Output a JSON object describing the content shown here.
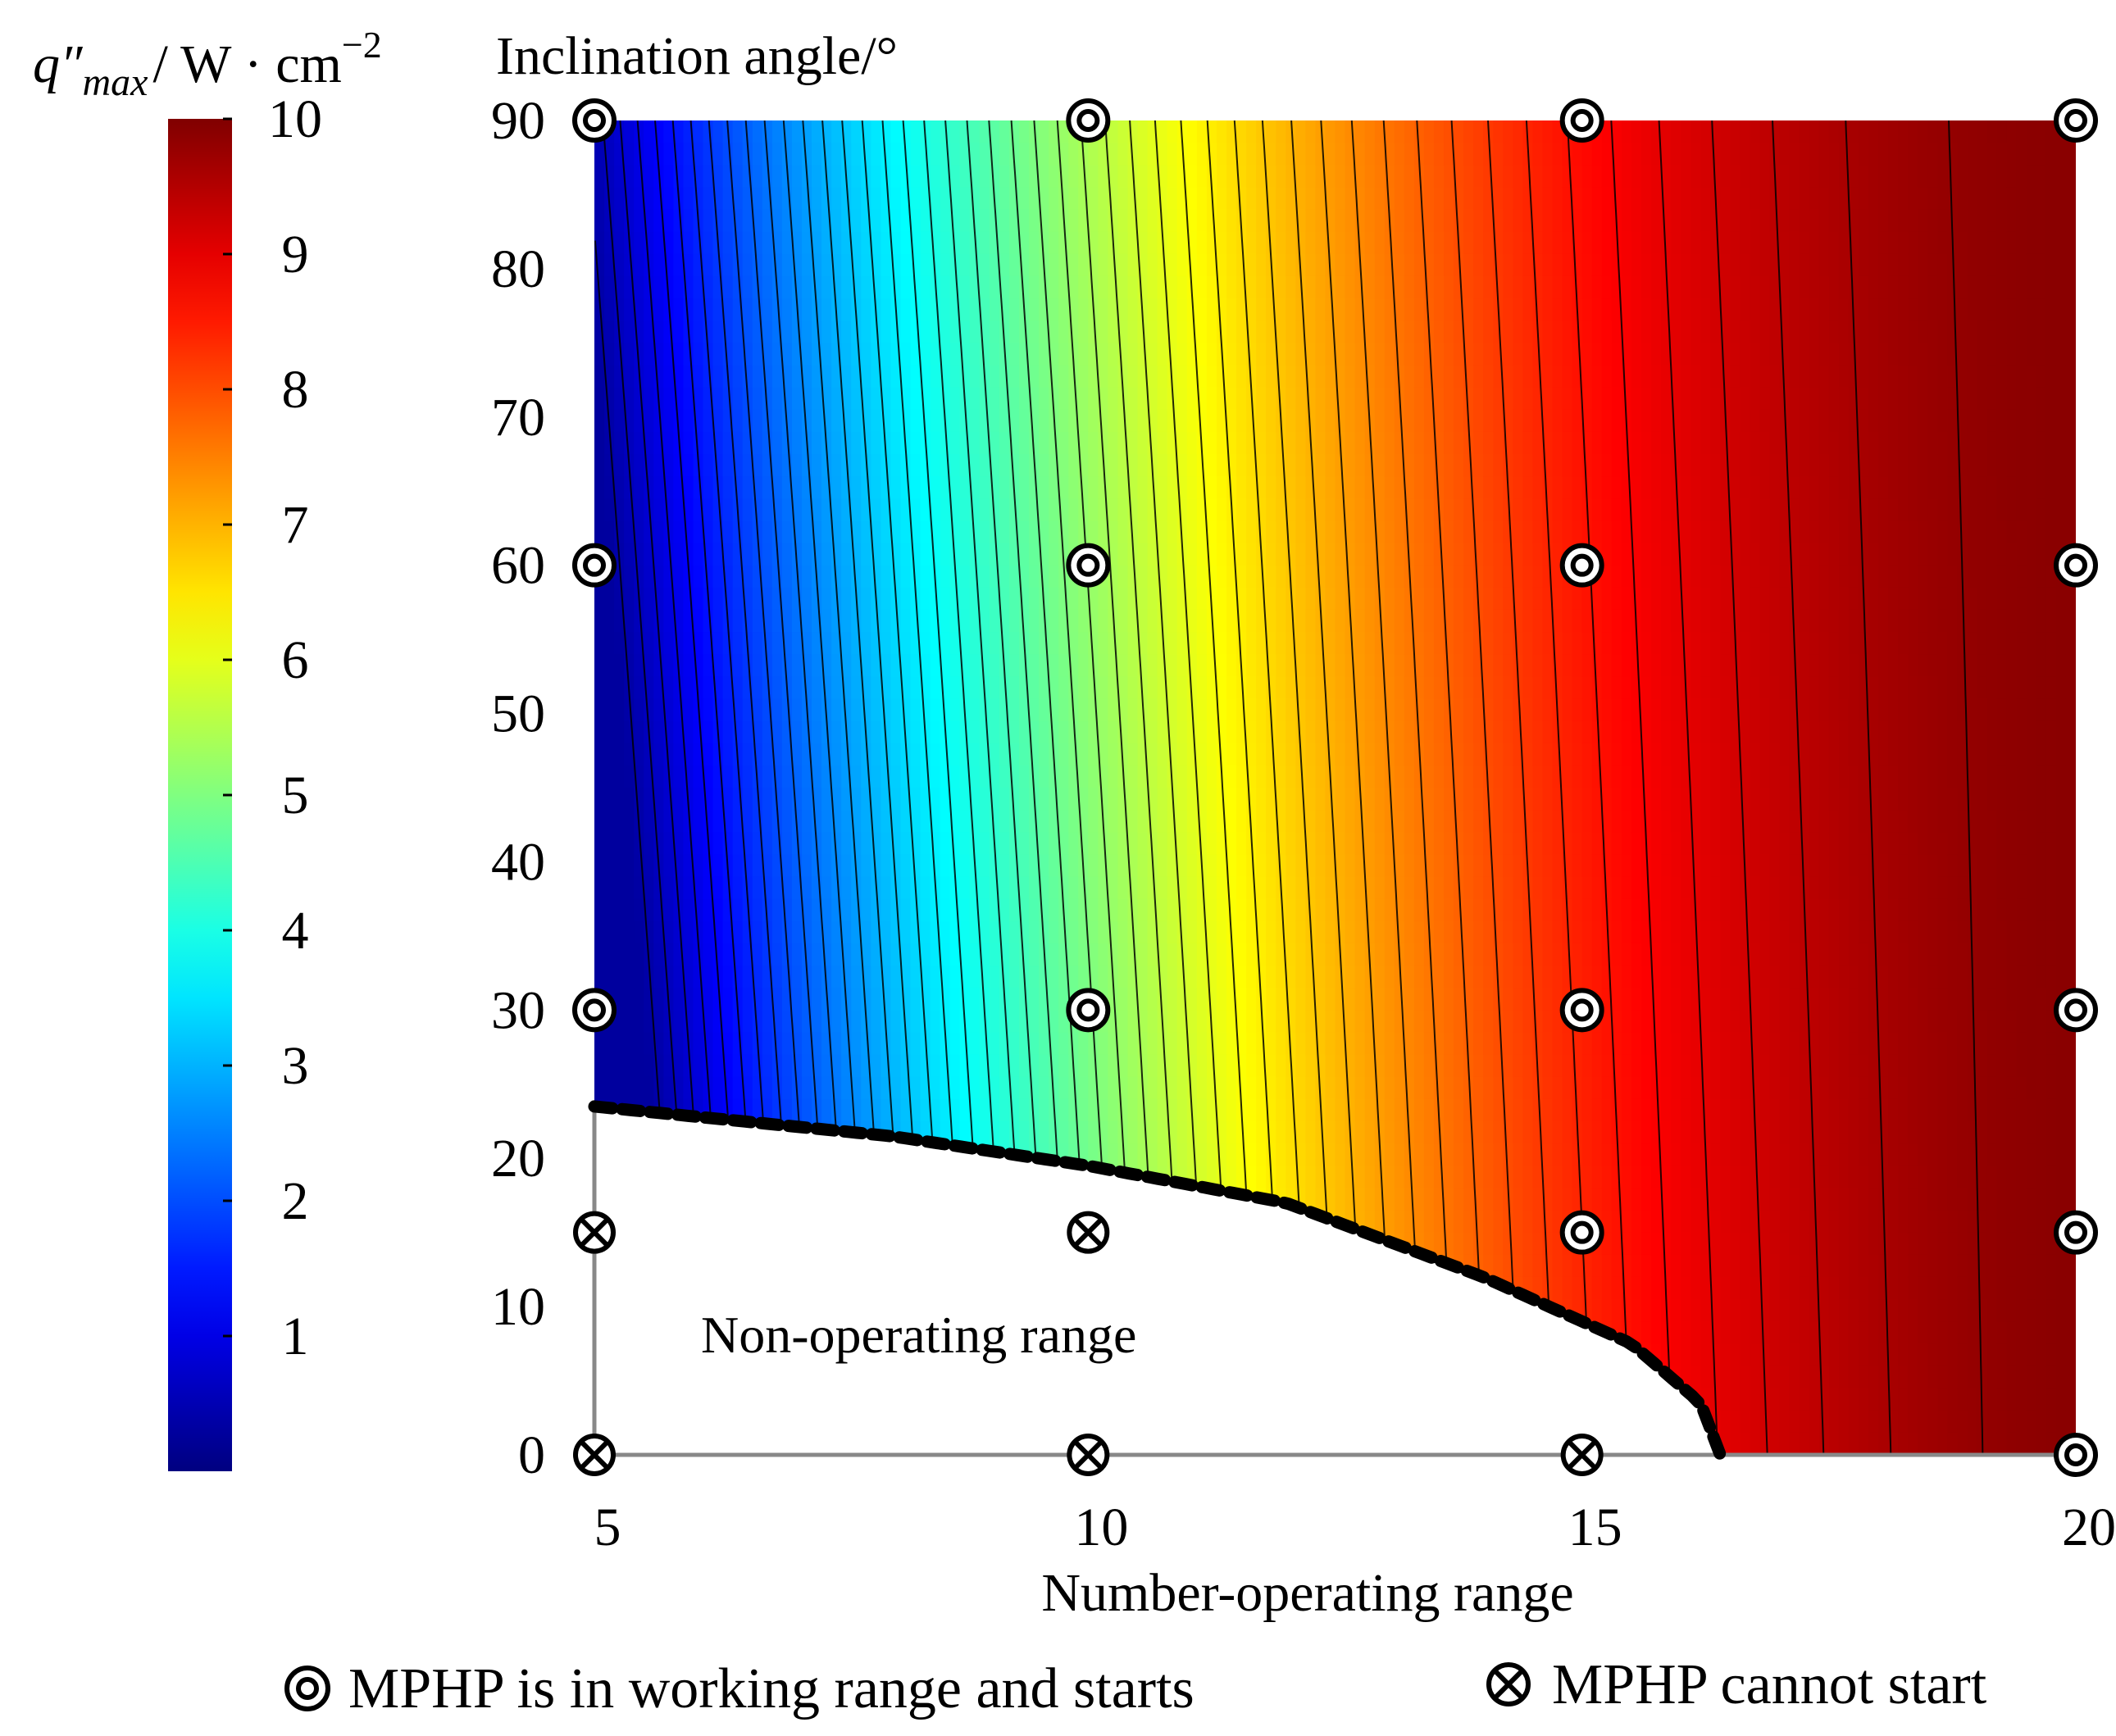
{
  "chart_data": {
    "type": "contour",
    "title": "Inclination angle/°",
    "xlabel": "Number-operating range",
    "ylabel": "Inclination angle/°",
    "xlim": [
      5,
      20
    ],
    "ylim": [
      0,
      90
    ],
    "xticks": [
      5,
      10,
      15,
      20
    ],
    "yticks": [
      0,
      10,
      20,
      30,
      40,
      50,
      60,
      70,
      80,
      90
    ],
    "colorbar": {
      "label_symbol": "q″",
      "label_subscript": "max",
      "label_units": "/ W · cm",
      "label_exponent": "−2",
      "range": [
        0,
        10
      ],
      "ticks": [
        1,
        2,
        3,
        4,
        5,
        6,
        7,
        8,
        9,
        10
      ],
      "colormap": "jet"
    },
    "field_description": "q''max increases with number of turns and with inclination angle; values range ~0.5 to 10 W/cm2",
    "contour_levels": 50,
    "boundary": {
      "name": "Non-operating range",
      "style": "dashed-black",
      "points": [
        [
          5,
          23.5
        ],
        [
          8,
          21.5
        ],
        [
          10,
          19.5
        ],
        [
          12,
          17
        ],
        [
          14,
          12
        ],
        [
          15.5,
          7.5
        ],
        [
          16.2,
          3.5
        ],
        [
          16.4,
          0
        ]
      ]
    },
    "region_label": "Non-operating range",
    "markers": {
      "starts": {
        "label": "MPHP is in working range and starts",
        "points": [
          [
            5,
            90
          ],
          [
            10,
            90
          ],
          [
            15,
            90
          ],
          [
            20,
            90
          ],
          [
            5,
            60
          ],
          [
            10,
            60
          ],
          [
            15,
            60
          ],
          [
            20,
            60
          ],
          [
            5,
            30
          ],
          [
            10,
            30
          ],
          [
            15,
            30
          ],
          [
            20,
            30
          ],
          [
            15,
            15
          ],
          [
            20,
            15
          ],
          [
            20,
            0
          ]
        ]
      },
      "cannot_start": {
        "label": "MPHP cannot start",
        "points": [
          [
            5,
            15
          ],
          [
            10,
            15
          ],
          [
            5,
            0
          ],
          [
            10,
            0
          ],
          [
            15,
            0
          ]
        ]
      }
    },
    "colors": {
      "jet": [
        "#00008f",
        "#0000ff",
        "#00ffff",
        "#ffff00",
        "#ff0000",
        "#800000"
      ],
      "boundary": "#000000",
      "axis": "#888888"
    }
  }
}
